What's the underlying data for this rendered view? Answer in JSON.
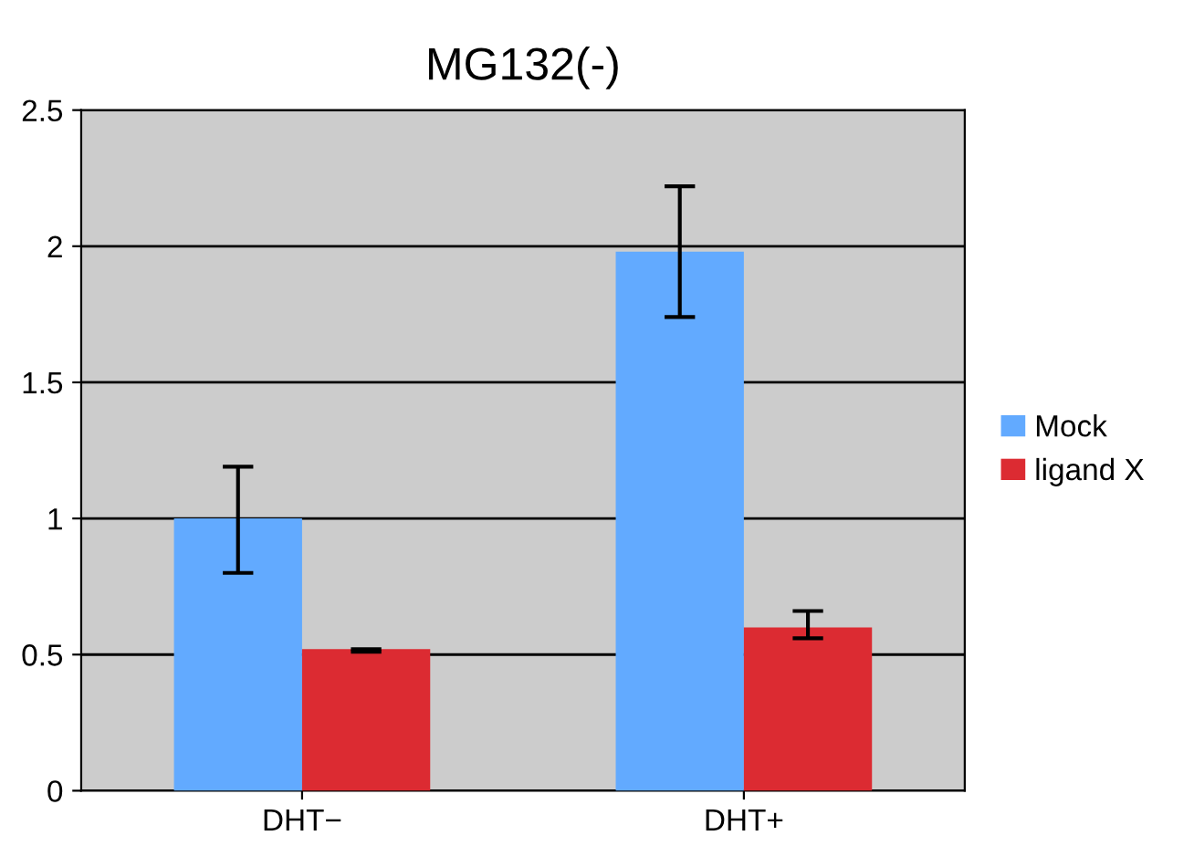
{
  "chart_data": {
    "type": "bar",
    "title": "MG132(-)",
    "categories": [
      "DHT−",
      "DHT+"
    ],
    "series": [
      {
        "name": "Mock",
        "color": "#62aaff",
        "values": [
          1.0,
          1.98
        ],
        "errors": [
          [
            0.8,
            1.19
          ],
          [
            1.74,
            2.22
          ]
        ]
      },
      {
        "name": "ligand X",
        "color": "#dc2b32",
        "values": [
          0.52,
          0.6
        ],
        "errors": [
          [
            0.51,
            0.52
          ],
          [
            0.56,
            0.66
          ]
        ]
      }
    ],
    "ylim": [
      0,
      2.5
    ],
    "yticks": [
      0,
      0.5,
      1,
      1.5,
      2,
      2.5
    ],
    "grid": "y",
    "legend": "right"
  }
}
